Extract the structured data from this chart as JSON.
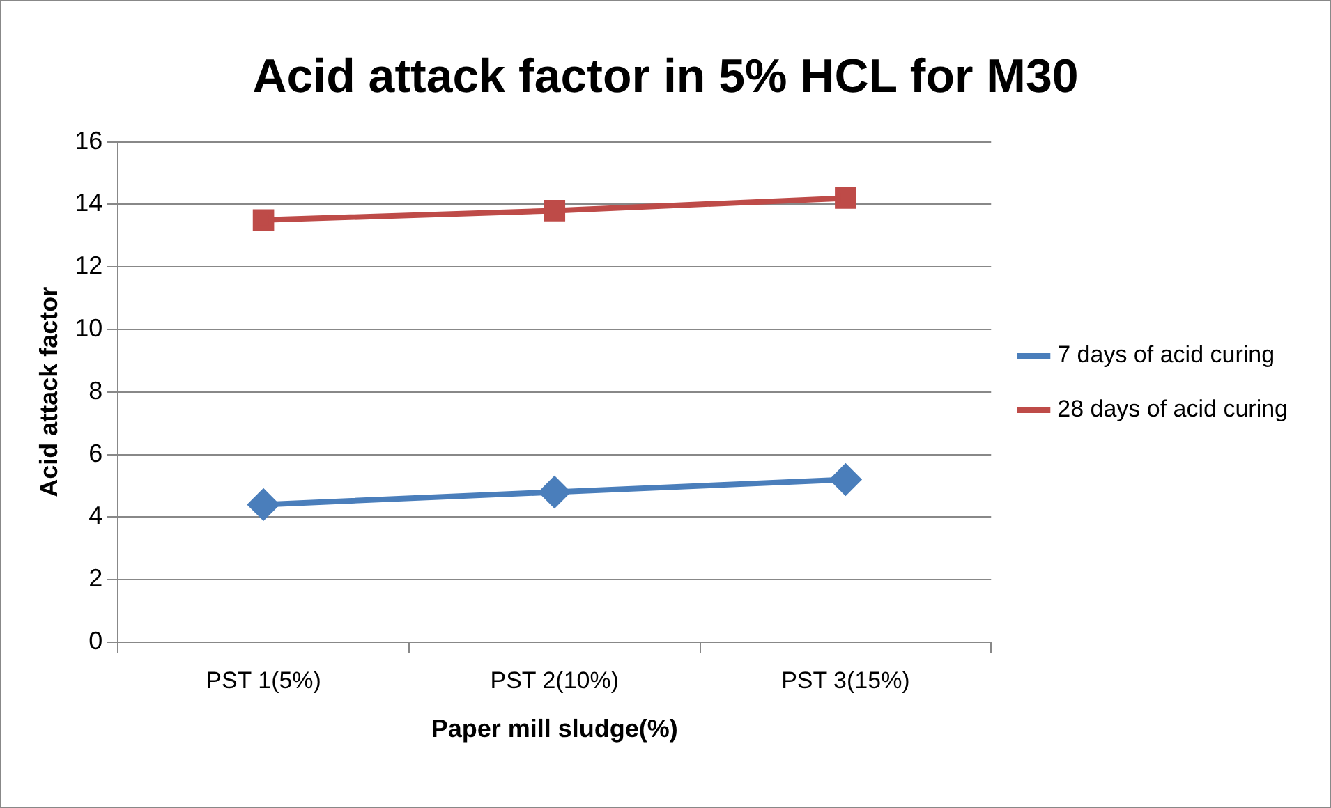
{
  "chart_data": {
    "type": "line",
    "title": "Acid attack factor in 5% HCL for M30",
    "xlabel": "Paper mill sludge(%)",
    "ylabel": "Acid attack factor",
    "categories": [
      "PST 1(5%)",
      "PST 2(10%)",
      "PST 3(15%)"
    ],
    "series": [
      {
        "name": "7 days of acid curing",
        "color": "#4a7ebb",
        "marker": "diamond",
        "values": [
          4.4,
          4.8,
          5.2
        ]
      },
      {
        "name": "28 days of acid curing",
        "color": "#be4b48",
        "marker": "square",
        "values": [
          13.5,
          13.8,
          14.2
        ]
      }
    ],
    "ylim": [
      0,
      16
    ],
    "yticks": [
      0,
      2,
      4,
      6,
      8,
      10,
      12,
      14,
      16
    ],
    "grid": "y",
    "legend": "right",
    "line_style": "solid"
  }
}
